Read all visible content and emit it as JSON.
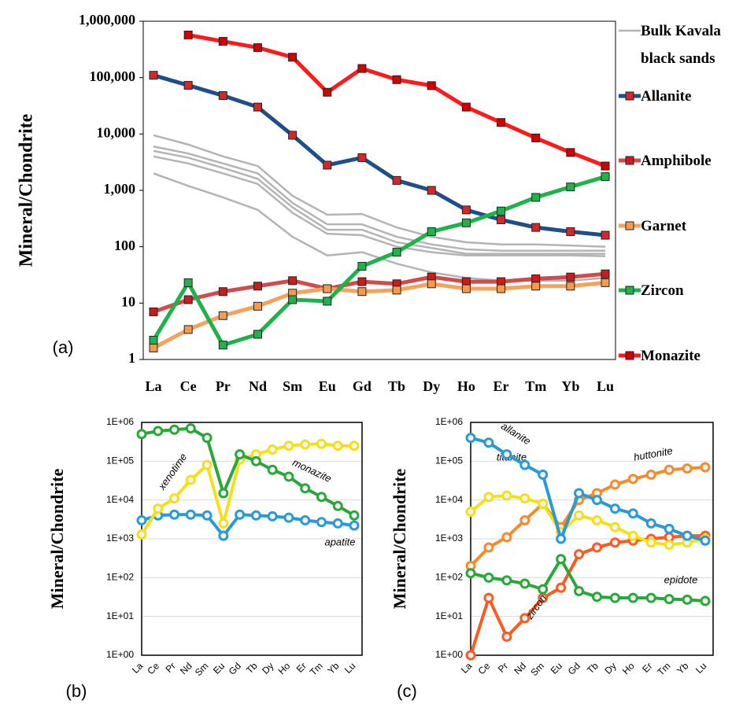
{
  "chart_data": [
    {
      "type": "line",
      "panel_label": "(a)",
      "y_label": "Mineral/Chondrite",
      "yscale": "log",
      "grid": false,
      "legend": "right",
      "marker": "square",
      "categories": [
        "La",
        "Ce",
        "Pr",
        "Nd",
        "Sm",
        "Eu",
        "Gd",
        "Tb",
        "Dy",
        "Ho",
        "Er",
        "Tm",
        "Yb",
        "Lu"
      ],
      "ylim": [
        1,
        1000000
      ],
      "yticks": [
        1,
        10,
        100,
        {
          "value": 1000,
          "label": "1,000"
        },
        {
          "value": 10000,
          "label": "10,000"
        },
        {
          "value": 100000,
          "label": "100,000"
        },
        {
          "value": 1000000,
          "label": "1,000,000"
        }
      ],
      "series": [
        {
          "name": "Bulk Kavala black sands",
          "color": "#b4b4b4",
          "marker": "none",
          "values": [
            9500,
            6500,
            4000,
            2700,
            800,
            370,
            380,
            220,
            150,
            120,
            110,
            110,
            105,
            100
          ]
        },
        {
          "color": "#b4b4b4",
          "marker": "none",
          "values": [
            6000,
            4500,
            3000,
            2000,
            600,
            250,
            250,
            150,
            110,
            90,
            85,
            85,
            85,
            85
          ]
        },
        {
          "color": "#b4b4b4",
          "marker": "none",
          "values": [
            5000,
            3800,
            2500,
            1600,
            500,
            200,
            200,
            120,
            95,
            75,
            75,
            75,
            75,
            75
          ]
        },
        {
          "color": "#b4b4b4",
          "marker": "none",
          "values": [
            4000,
            3000,
            2000,
            1300,
            400,
            170,
            160,
            100,
            80,
            70,
            70,
            70,
            70,
            68
          ]
        },
        {
          "color": "#b4b4b4",
          "marker": "none",
          "values": [
            2000,
            1200,
            750,
            450,
            150,
            70,
            80,
            50,
            35,
            28,
            25,
            25,
            25,
            28
          ]
        },
        {
          "name": "Allanite",
          "color": "#1f4e8c",
          "marker_color": "#d62728",
          "values": [
            110000,
            73000,
            48000,
            30000,
            9500,
            2800,
            3800,
            1500,
            1000,
            450,
            300,
            220,
            185,
            160
          ]
        },
        {
          "name": "Amphibole",
          "color": "#d14b4b",
          "marker_color": "#c41e1e",
          "values": [
            7,
            11.5,
            16,
            20,
            25,
            18,
            24,
            22,
            29,
            24,
            24,
            27,
            29,
            33
          ]
        },
        {
          "name": "Garnet",
          "color": "#f7a25a",
          "marker_color": "#f59b4c",
          "values": [
            1.6,
            3.4,
            6,
            8.8,
            15,
            18,
            16,
            17,
            22,
            18,
            18,
            20,
            20,
            23
          ]
        },
        {
          "name": "Zircon",
          "color": "#1db34a",
          "marker_color": "#22b14c",
          "values": [
            2.2,
            23,
            1.8,
            2.8,
            11.5,
            10.8,
            45,
            80,
            185,
            265,
            430,
            750,
            1150,
            1750
          ]
        },
        {
          "name": "Monazite",
          "color": "#ff1a1a",
          "marker_color": "#d40000",
          "values": [
            null,
            570000,
            440000,
            340000,
            230000,
            55000,
            145000,
            92000,
            72000,
            30000,
            16000,
            8500,
            4700,
            2700
          ]
        }
      ]
    },
    {
      "type": "line",
      "panel_label": "(b)",
      "y_label": "Mineral/Chondrite",
      "yscale": "log",
      "grid": true,
      "marker": "circle",
      "categories": [
        "La",
        "Ce",
        "Pr",
        "Nd",
        "Sm",
        "Eu",
        "Gd",
        "Tb",
        "Dy",
        "Ho",
        "Er",
        "Tm",
        "Yb",
        "Lu"
      ],
      "ylim": [
        1,
        1000000
      ],
      "yticks": [
        {
          "value": 1,
          "label": "1E+00"
        },
        {
          "value": 10,
          "label": "1E+01"
        },
        {
          "value": 100,
          "label": "1E+02"
        },
        {
          "value": 1000,
          "label": "1E+03"
        },
        {
          "value": 10000,
          "label": "1E+04"
        },
        {
          "value": 100000,
          "label": "1E+05"
        },
        {
          "value": 1000000,
          "label": "1E+06"
        }
      ],
      "series": [
        {
          "name": "apatite",
          "color": "#2a9ad6",
          "values": [
            3000,
            4000,
            4200,
            4200,
            4000,
            1200,
            4200,
            4000,
            3800,
            3500,
            3000,
            2700,
            2500,
            2200
          ]
        },
        {
          "name": "xenotime",
          "color": "#f4e01a",
          "values": [
            1300,
            6000,
            11000,
            33000,
            80000,
            2500,
            110000,
            150000,
            200000,
            250000,
            270000,
            280000,
            250000,
            250000
          ]
        },
        {
          "name": "monazite",
          "color": "#29a83a",
          "values": [
            500000,
            600000,
            650000,
            700000,
            400000,
            15000,
            150000,
            100000,
            60000,
            40000,
            20000,
            12000,
            7000,
            4000
          ]
        }
      ]
    },
    {
      "type": "line",
      "panel_label": "(c)",
      "y_label": "Mineral/Chondrite",
      "yscale": "log",
      "grid": true,
      "marker": "circle",
      "categories": [
        "La",
        "Ce",
        "Pr",
        "Nd",
        "Sm",
        "Eu",
        "Gd",
        "Tb",
        "Dy",
        "Ho",
        "Er",
        "Tm",
        "Yb",
        "Lu"
      ],
      "ylim": [
        1,
        1000000
      ],
      "yticks": [
        {
          "value": 1,
          "label": "1E+00"
        },
        {
          "value": 10,
          "label": "1E+01"
        },
        {
          "value": 100,
          "label": "1E+02"
        },
        {
          "value": 1000,
          "label": "1E+03"
        },
        {
          "value": 10000,
          "label": "1E+04"
        },
        {
          "value": 100000,
          "label": "1E+05"
        },
        {
          "value": 1000000,
          "label": "1E+06"
        }
      ],
      "series": [
        {
          "name": "huttonite",
          "color": "#f78a2a",
          "values": [
            200,
            600,
            1100,
            3000,
            8000,
            2000,
            10000,
            15000,
            25000,
            35000,
            45000,
            60000,
            65000,
            70000
          ]
        },
        {
          "name": "zircon",
          "color": "#ff5a1f",
          "values": [
            1,
            30,
            3,
            9,
            30,
            55,
            400,
            600,
            800,
            900,
            1000,
            1100,
            1200,
            1200
          ]
        },
        {
          "name": "titanite",
          "color": "#f4e01a",
          "values": [
            5000,
            12000,
            13000,
            11000,
            8000,
            1500,
            4000,
            3000,
            2000,
            1200,
            800,
            700,
            800,
            1000
          ]
        },
        {
          "name": "allanite",
          "color": "#2a9ad6",
          "values": [
            400000,
            300000,
            150000,
            80000,
            45000,
            1000,
            15000,
            10000,
            6000,
            4500,
            2500,
            1800,
            1200,
            900
          ]
        },
        {
          "name": "epidote",
          "color": "#29a83a",
          "values": [
            130,
            100,
            85,
            70,
            50,
            300,
            45,
            32,
            30,
            30,
            30,
            28,
            27,
            25
          ]
        }
      ]
    }
  ]
}
